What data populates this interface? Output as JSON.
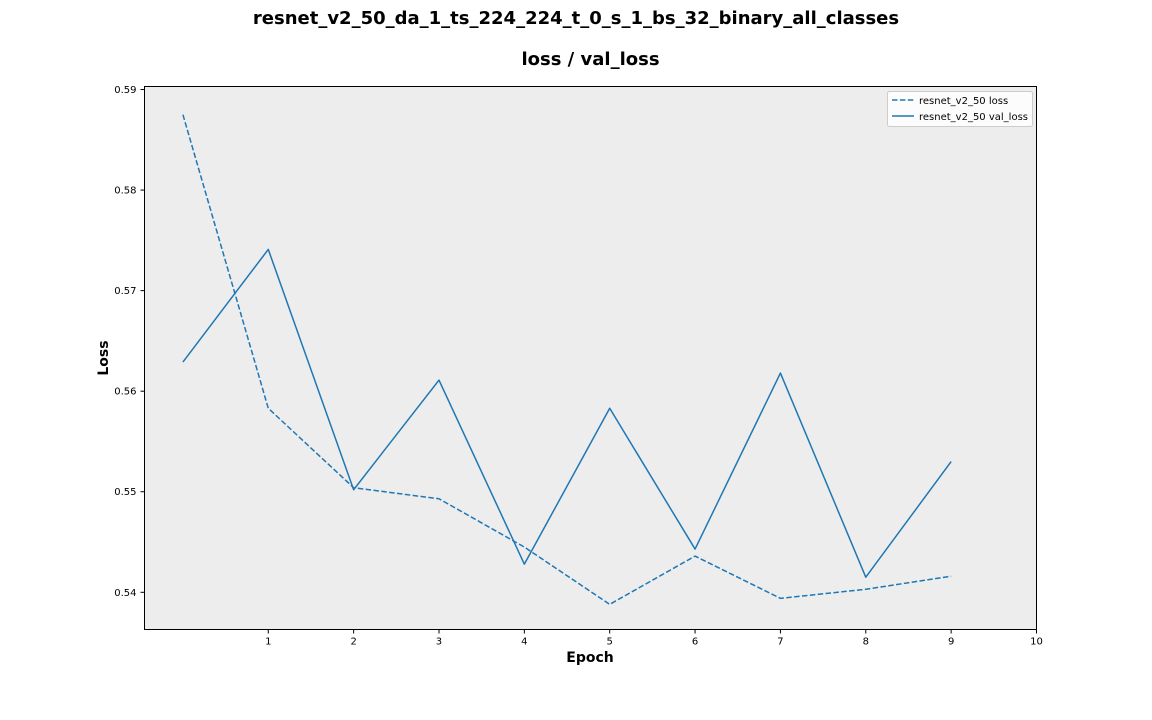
{
  "chart_data": {
    "type": "line",
    "suptitle": "resnet_v2_50_da_1_ts_224_224_t_0_s_1_bs_32_binary_all_classes",
    "title": "loss / val_loss",
    "xlabel": "Epoch",
    "ylabel": "Loss",
    "xlim": [
      -0.45,
      10
    ],
    "ylim": [
      0.5363,
      0.5903
    ],
    "xticks": [
      1,
      2,
      3,
      4,
      5,
      6,
      7,
      8,
      9,
      10
    ],
    "yticks": [
      0.54,
      0.55,
      0.56,
      0.57,
      0.58,
      0.59
    ],
    "grid": false,
    "legend_position": "top-right",
    "background": "#ededed",
    "series": [
      {
        "name": "resnet_v2_50 loss",
        "style": "dashed",
        "color": "#1f77b4",
        "x": [
          0,
          1,
          2,
          3,
          4,
          5,
          6,
          7,
          8,
          9
        ],
        "values": [
          0.5875,
          0.5583,
          0.5504,
          0.5493,
          0.5445,
          0.5388,
          0.5436,
          0.5394,
          0.5403,
          0.5416
        ]
      },
      {
        "name": "resnet_v2_50 val_loss",
        "style": "solid",
        "color": "#1f77b4",
        "x": [
          0,
          1,
          2,
          3,
          4,
          5,
          6,
          7,
          8,
          9
        ],
        "values": [
          0.5629,
          0.5741,
          0.5502,
          0.5611,
          0.5428,
          0.5583,
          0.5443,
          0.5618,
          0.5415,
          0.553
        ]
      }
    ]
  }
}
